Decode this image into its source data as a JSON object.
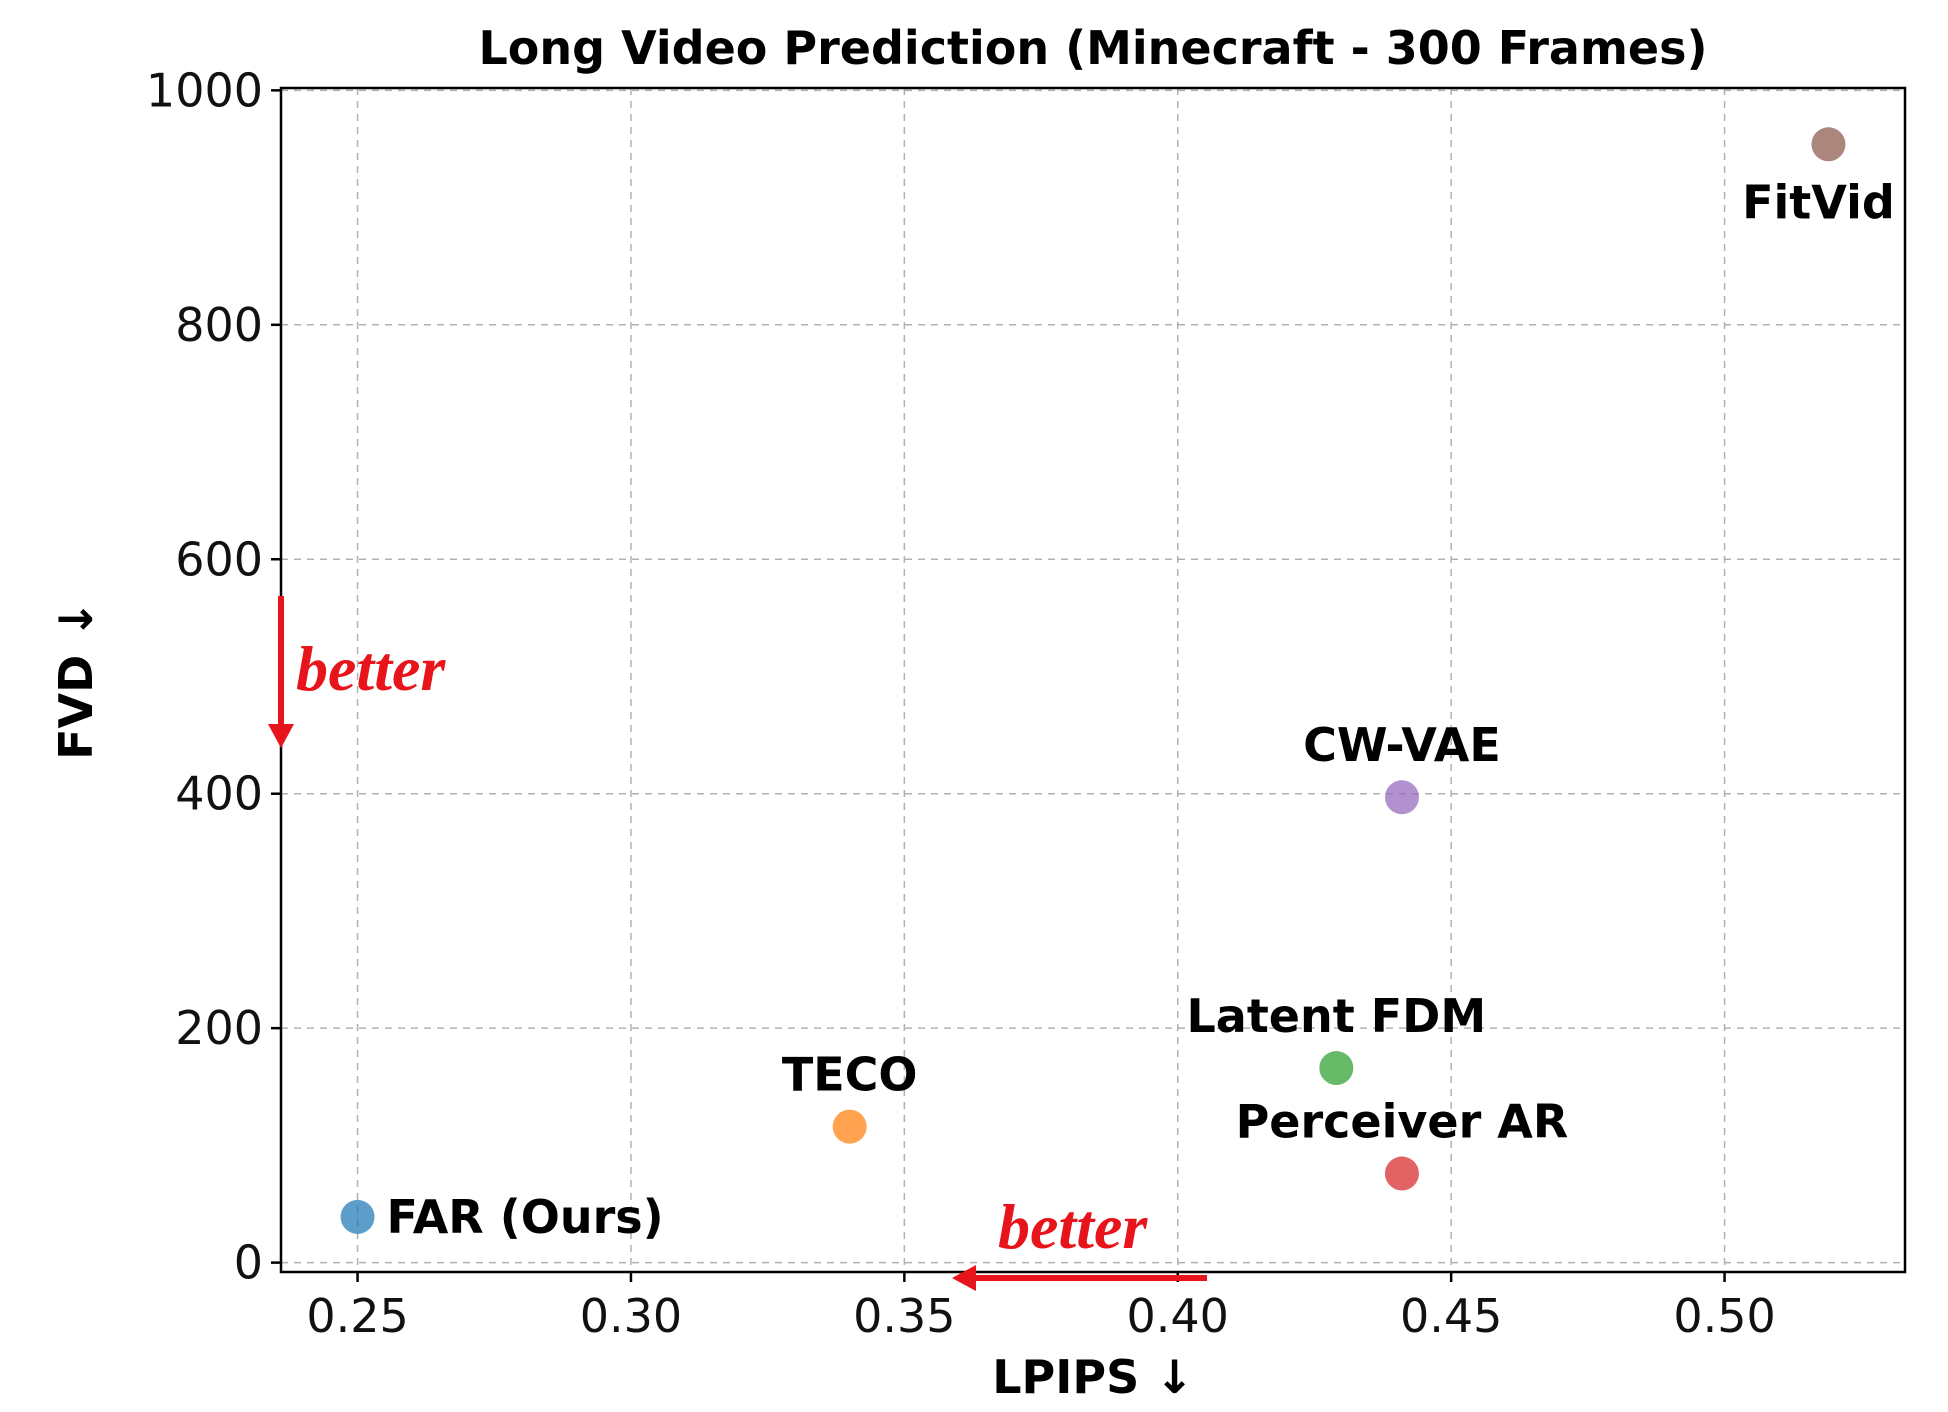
{
  "chart_data": {
    "type": "scatter",
    "title": "Long Video Prediction (Minecraft - 300 Frames)",
    "xlabel": "LPIPS ↓",
    "ylabel": "FVD ↓",
    "xlim": [
      0.236,
      0.533
    ],
    "ylim": [
      -8,
      1002
    ],
    "xticks": [
      0.25,
      0.3,
      0.35,
      0.4,
      0.45,
      0.5
    ],
    "xtick_labels": [
      "0.25",
      "0.30",
      "0.35",
      "0.40",
      "0.45",
      "0.50"
    ],
    "yticks": [
      0,
      200,
      400,
      600,
      800,
      1000
    ],
    "ytick_labels": [
      "0",
      "200",
      "400",
      "600",
      "800",
      "1000"
    ],
    "grid": true,
    "points": [
      {
        "name": "FAR (Ours)",
        "x": 0.25,
        "y": 39,
        "color": "#1f77b4",
        "label_pos": "right"
      },
      {
        "name": "TECO",
        "x": 0.34,
        "y": 116,
        "color": "#ff7f0e",
        "label_pos": "above"
      },
      {
        "name": "Latent FDM",
        "x": 0.429,
        "y": 166,
        "color": "#2ca02c",
        "label_pos": "above"
      },
      {
        "name": "Perceiver AR",
        "x": 0.441,
        "y": 76,
        "color": "#d62728",
        "label_pos": "above"
      },
      {
        "name": "CW-VAE",
        "x": 0.441,
        "y": 397,
        "color": "#9467bd",
        "label_pos": "above"
      },
      {
        "name": "FitVid",
        "x": 0.519,
        "y": 954,
        "color": "#8c564b",
        "label_pos": "below"
      }
    ],
    "annotations": [
      {
        "name": "better-y",
        "text": "better",
        "direction": "down"
      },
      {
        "name": "better-x",
        "text": "better",
        "direction": "left"
      }
    ]
  }
}
